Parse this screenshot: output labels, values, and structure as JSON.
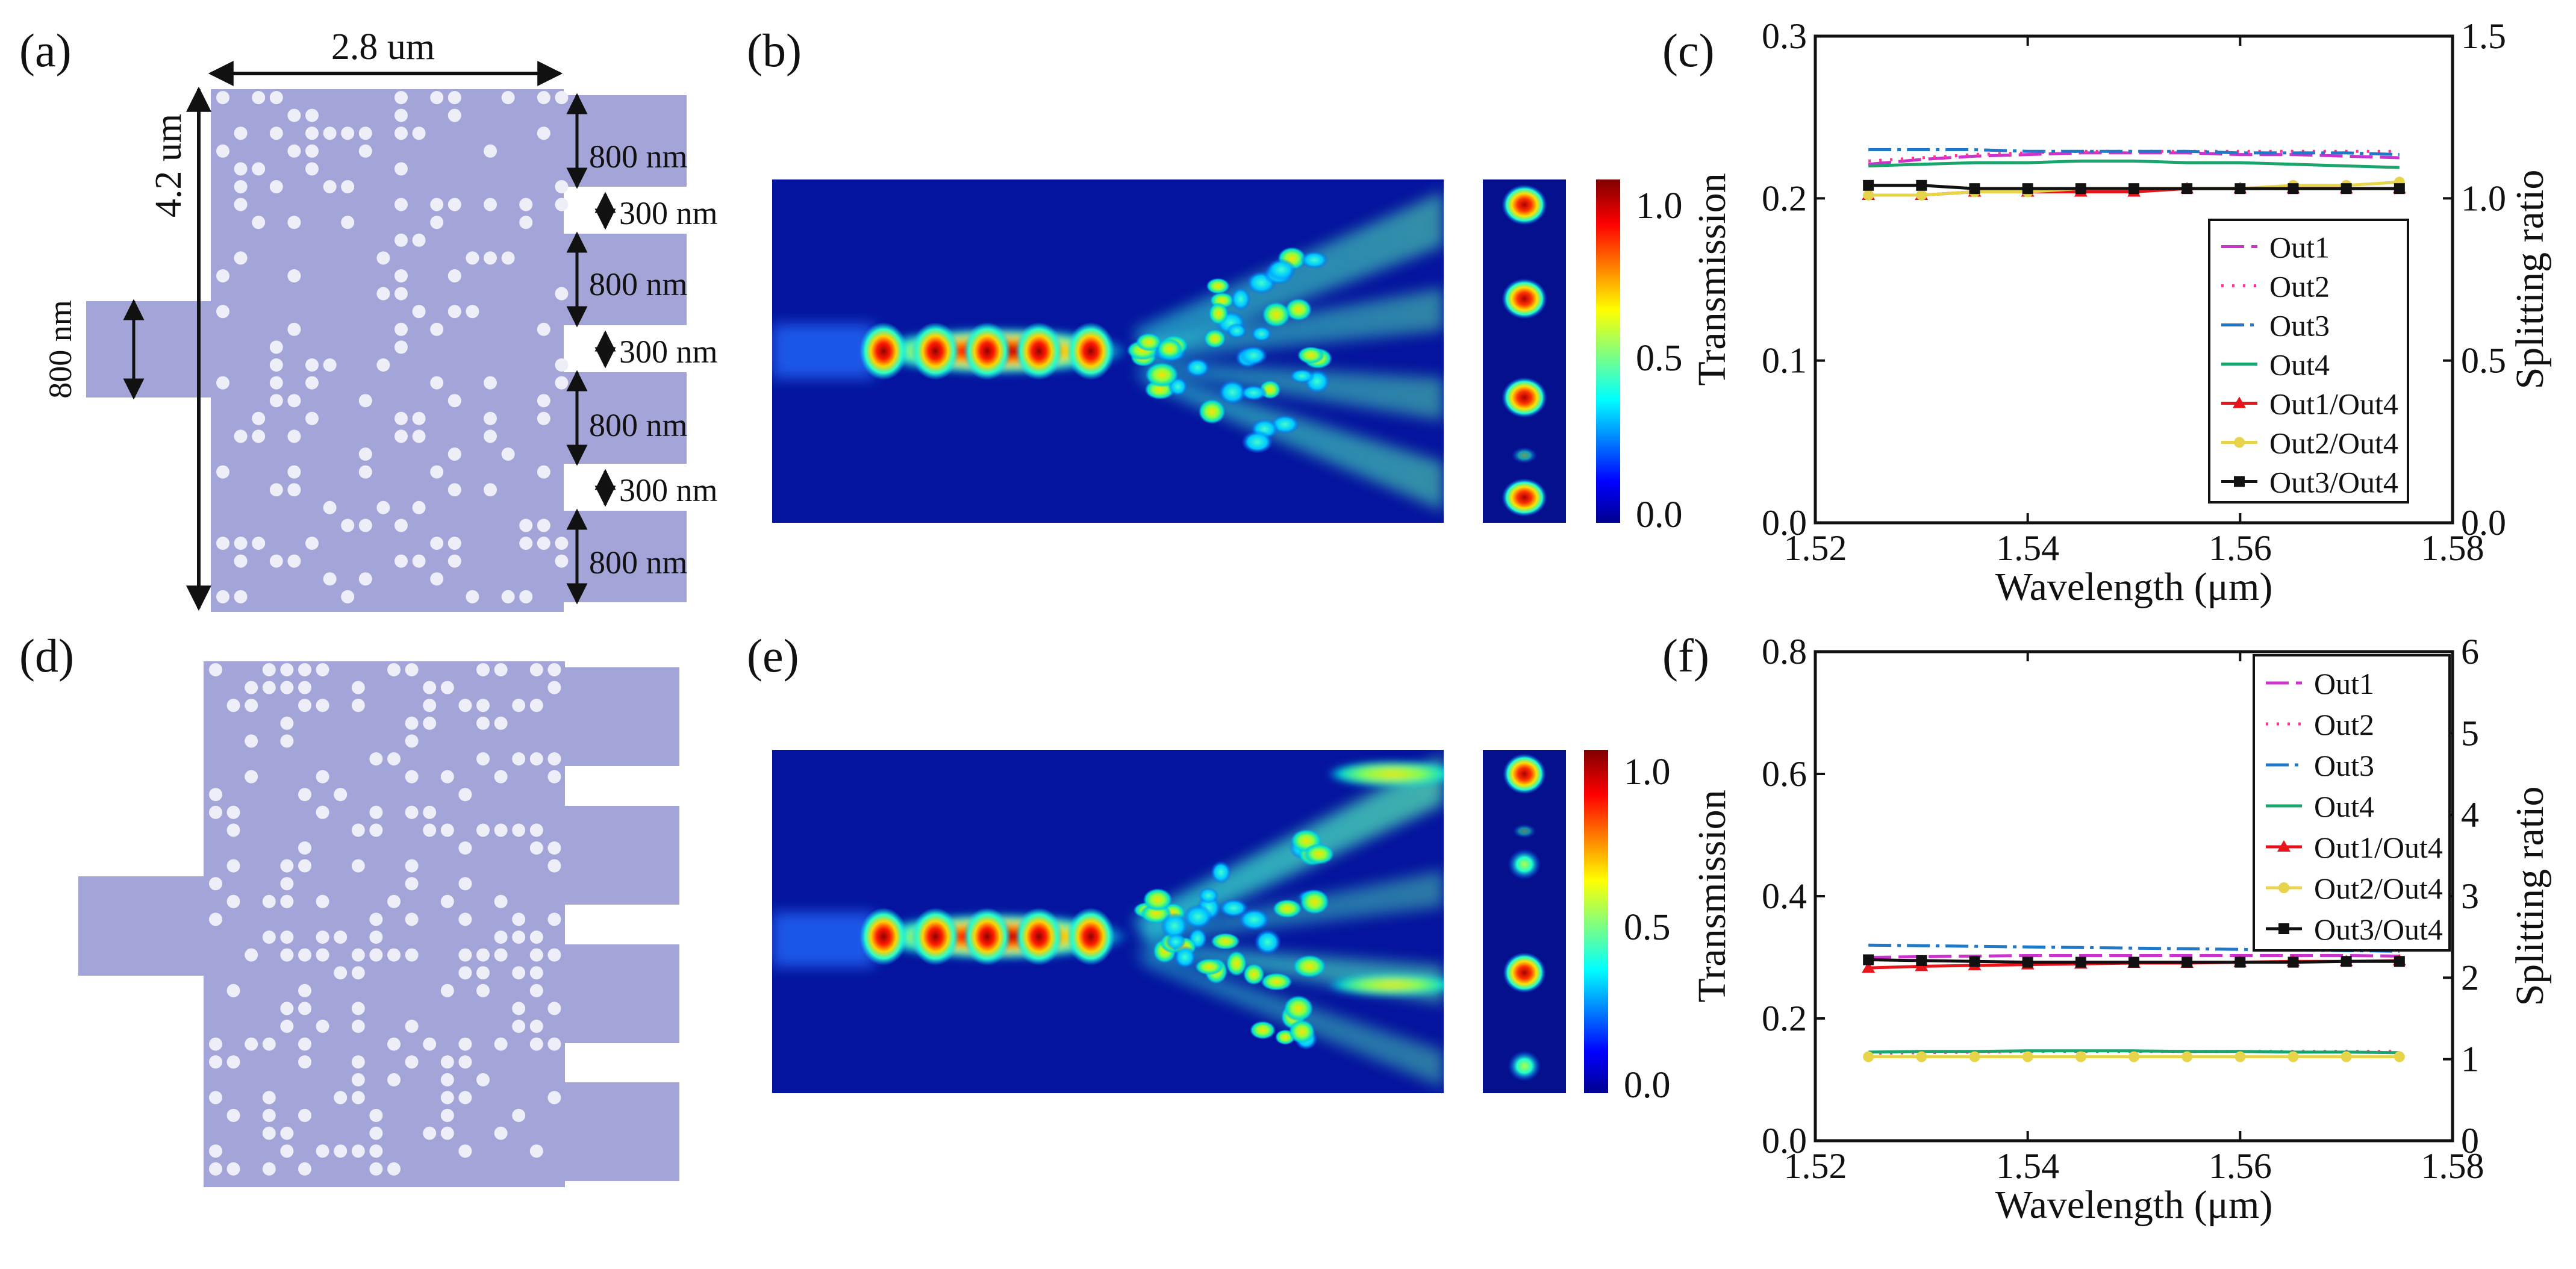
{
  "panels": {
    "a": {
      "label": "(a)",
      "dim_width": "2.8 um",
      "dim_height": "4.2 um",
      "dim_input": "800 nm",
      "dim_ports": [
        "800 nm",
        "300 nm",
        "800 nm",
        "300 nm",
        "800 nm",
        "300 nm",
        "800 nm"
      ]
    },
    "b": {
      "label": "(b)",
      "colorbar_ticks": [
        "1.0",
        "0.5",
        "0.0"
      ]
    },
    "c": {
      "label": "(c)"
    },
    "d": {
      "label": "(d)"
    },
    "e": {
      "label": "(e)",
      "colorbar_ticks": [
        "1.0",
        "0.5",
        "0.0"
      ]
    },
    "f": {
      "label": "(f)"
    }
  },
  "colors": {
    "device": "#a3a4d7",
    "hole": "#eeeef8",
    "out1": "#cc33cc",
    "out2": "#ff3399",
    "out3": "#1f78c8",
    "out4": "#1aa56d",
    "ratio1": "#e8141c",
    "ratio2": "#e8d44a",
    "ratio3": "#111111"
  },
  "chart_data": [
    {
      "type": "line",
      "panel": "c",
      "xlabel": "Wavelength (μm)",
      "ylabel": "Transmission",
      "y2label": "Splitting ratio",
      "xlim": [
        1.52,
        1.58
      ],
      "ylim": [
        0,
        0.3
      ],
      "y2lim": [
        0,
        1.5
      ],
      "xticks": [
        "1.52",
        "1.54",
        "1.56",
        "1.58"
      ],
      "yticks": [
        "0.0",
        "0.1",
        "0.2",
        "0.3"
      ],
      "y2ticks": [
        "0.0",
        "0.5",
        "1.0",
        "1.5"
      ],
      "legend_position": "lower-right",
      "x": [
        1.525,
        1.53,
        1.535,
        1.54,
        1.545,
        1.55,
        1.555,
        1.56,
        1.565,
        1.57,
        1.575
      ],
      "series": [
        {
          "name": "Out1",
          "axis": "left",
          "values": [
            0.221,
            0.224,
            0.226,
            0.227,
            0.228,
            0.228,
            0.228,
            0.227,
            0.227,
            0.226,
            0.225
          ]
        },
        {
          "name": "Out2",
          "axis": "left",
          "values": [
            0.223,
            0.225,
            0.227,
            0.228,
            0.229,
            0.229,
            0.229,
            0.229,
            0.229,
            0.229,
            0.229
          ]
        },
        {
          "name": "Out3",
          "axis": "left",
          "values": [
            0.23,
            0.23,
            0.23,
            0.229,
            0.229,
            0.229,
            0.229,
            0.228,
            0.228,
            0.228,
            0.227
          ]
        },
        {
          "name": "Out4",
          "axis": "left",
          "values": [
            0.22,
            0.221,
            0.222,
            0.222,
            0.223,
            0.223,
            0.222,
            0.222,
            0.221,
            0.22,
            0.219
          ]
        },
        {
          "name": "Out1/Out4",
          "axis": "right",
          "values": [
            1.01,
            1.01,
            1.02,
            1.02,
            1.02,
            1.02,
            1.03,
            1.03,
            1.03,
            1.03,
            1.03
          ]
        },
        {
          "name": "Out2/Out4",
          "axis": "right",
          "values": [
            1.01,
            1.01,
            1.02,
            1.02,
            1.03,
            1.03,
            1.03,
            1.03,
            1.04,
            1.04,
            1.05
          ]
        },
        {
          "name": "Out3/Out4",
          "axis": "right",
          "values": [
            1.04,
            1.04,
            1.03,
            1.03,
            1.03,
            1.03,
            1.03,
            1.03,
            1.03,
            1.03,
            1.03
          ]
        }
      ]
    },
    {
      "type": "line",
      "panel": "f",
      "xlabel": "Wavelength (μm)",
      "ylabel": "Transmission",
      "y2label": "Splitting ratio",
      "xlim": [
        1.52,
        1.58
      ],
      "ylim": [
        0,
        0.8
      ],
      "y2lim": [
        0,
        6
      ],
      "xticks": [
        "1.52",
        "1.54",
        "1.56",
        "1.58"
      ],
      "yticks": [
        "0.0",
        "0.2",
        "0.4",
        "0.6",
        "0.8"
      ],
      "y2ticks": [
        "0",
        "1",
        "2",
        "3",
        "4",
        "5",
        "6"
      ],
      "legend_position": "upper-right",
      "x": [
        1.525,
        1.53,
        1.535,
        1.54,
        1.545,
        1.55,
        1.555,
        1.56,
        1.565,
        1.57,
        1.575
      ],
      "series": [
        {
          "name": "Out1",
          "axis": "left",
          "values": [
            0.3,
            0.301,
            0.302,
            0.303,
            0.303,
            0.303,
            0.303,
            0.303,
            0.303,
            0.303,
            0.302
          ]
        },
        {
          "name": "Out2",
          "axis": "left",
          "values": [
            0.143,
            0.144,
            0.145,
            0.146,
            0.146,
            0.146,
            0.146,
            0.146,
            0.146,
            0.146,
            0.146
          ]
        },
        {
          "name": "Out3",
          "axis": "left",
          "values": [
            0.32,
            0.319,
            0.318,
            0.317,
            0.316,
            0.315,
            0.314,
            0.313,
            0.312,
            0.311,
            0.31
          ]
        },
        {
          "name": "Out4",
          "axis": "left",
          "values": [
            0.145,
            0.146,
            0.146,
            0.147,
            0.147,
            0.147,
            0.146,
            0.146,
            0.145,
            0.145,
            0.144
          ]
        },
        {
          "name": "Out1/Out4",
          "axis": "right",
          "values": [
            2.12,
            2.14,
            2.15,
            2.16,
            2.17,
            2.18,
            2.18,
            2.19,
            2.2,
            2.2,
            2.21
          ]
        },
        {
          "name": "Out2/Out4",
          "axis": "right",
          "values": [
            1.03,
            1.03,
            1.03,
            1.03,
            1.03,
            1.03,
            1.03,
            1.03,
            1.03,
            1.03,
            1.03
          ]
        },
        {
          "name": "Out3/Out4",
          "axis": "right",
          "values": [
            2.22,
            2.21,
            2.2,
            2.19,
            2.19,
            2.19,
            2.19,
            2.19,
            2.19,
            2.2,
            2.2
          ]
        }
      ]
    }
  ]
}
